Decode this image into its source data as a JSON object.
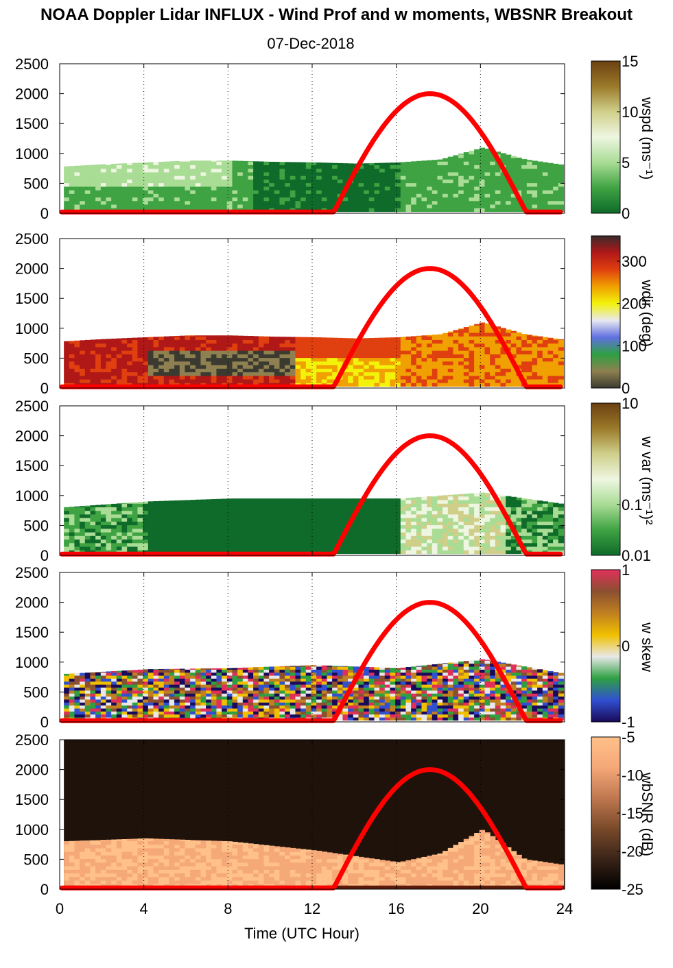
{
  "title": "NOAA Doppler Lidar INFLUX - Wind Prof and w moments, WBSNR Breakout",
  "subtitle": "07-Dec-2018",
  "chart_data": [
    {
      "type": "heatmap",
      "panel": "wspd",
      "colorbar_label": "wspd (ms⁻¹)",
      "colorbar_ticks": [
        "0",
        "5",
        "10",
        "15"
      ],
      "clim": [
        0,
        15
      ],
      "ylim": [
        0,
        2500
      ],
      "y_ticks": [
        "0",
        "500",
        "1000",
        "1500",
        "2000",
        "2500"
      ],
      "colors": [
        "#0e6b2a",
        "#3fa343",
        "#a9dc95",
        "#eef6e1",
        "#cfcf8a",
        "#9b7a2a",
        "#6b4010"
      ],
      "aerosol_top_m": [
        {
          "t": 0,
          "h": 780
        },
        {
          "t": 2,
          "h": 820
        },
        {
          "t": 4,
          "h": 850
        },
        {
          "t": 6,
          "h": 880
        },
        {
          "t": 8,
          "h": 880
        },
        {
          "t": 10,
          "h": 860
        },
        {
          "t": 12,
          "h": 850
        },
        {
          "t": 14,
          "h": 830
        },
        {
          "t": 16,
          "h": 850
        },
        {
          "t": 18,
          "h": 900
        },
        {
          "t": 20,
          "h": 1100
        },
        {
          "t": 22,
          "h": 900
        },
        {
          "t": 24,
          "h": 800
        }
      ]
    },
    {
      "type": "heatmap",
      "panel": "wdir",
      "colorbar_label": "wdir (deg)",
      "colorbar_ticks": [
        "0",
        "100",
        "200",
        "300"
      ],
      "clim": [
        0,
        360
      ],
      "ylim": [
        0,
        2500
      ],
      "y_ticks": [
        "0",
        "500",
        "1000",
        "1500",
        "2000",
        "2500"
      ],
      "colors": [
        "#3a3a30",
        "#8e8050",
        "#2ea043",
        "#6070e0",
        "#e8e8f0",
        "#f2f20a",
        "#f0a000",
        "#e04010",
        "#b01818",
        "#3a2a2a"
      ],
      "aerosol_top_m": [
        {
          "t": 0,
          "h": 780
        },
        {
          "t": 2,
          "h": 820
        },
        {
          "t": 4,
          "h": 850
        },
        {
          "t": 6,
          "h": 880
        },
        {
          "t": 8,
          "h": 880
        },
        {
          "t": 10,
          "h": 860
        },
        {
          "t": 12,
          "h": 850
        },
        {
          "t": 14,
          "h": 830
        },
        {
          "t": 16,
          "h": 850
        },
        {
          "t": 18,
          "h": 900
        },
        {
          "t": 20,
          "h": 1100
        },
        {
          "t": 22,
          "h": 900
        },
        {
          "t": 24,
          "h": 800
        }
      ]
    },
    {
      "type": "heatmap",
      "panel": "w var",
      "colorbar_label": "w var (ms⁻¹)²",
      "colorbar_ticks": [
        "0.01",
        "0.1",
        "10"
      ],
      "clim": [
        0.01,
        10
      ],
      "scale": "log",
      "ylim": [
        0,
        2500
      ],
      "y_ticks": [
        "0",
        "500",
        "1000",
        "1500",
        "2000",
        "2500"
      ],
      "colors": [
        "#0e6b2a",
        "#3fa343",
        "#a9dc95",
        "#eef6e1",
        "#cfcf8a",
        "#9b7a2a",
        "#6b4010"
      ],
      "aerosol_top_m": [
        {
          "t": 0,
          "h": 800
        },
        {
          "t": 4,
          "h": 900
        },
        {
          "t": 8,
          "h": 950
        },
        {
          "t": 12,
          "h": 950
        },
        {
          "t": 16,
          "h": 950
        },
        {
          "t": 20,
          "h": 1050
        },
        {
          "t": 24,
          "h": 850
        }
      ]
    },
    {
      "type": "heatmap",
      "panel": "w skew",
      "colorbar_label": "w skew",
      "colorbar_ticks": [
        "-1",
        "0",
        "1"
      ],
      "clim": [
        -1,
        1
      ],
      "ylim": [
        0,
        2500
      ],
      "y_ticks": [
        "0",
        "500",
        "1000",
        "1500",
        "2000",
        "2500"
      ],
      "colors": [
        "#1a0a5a",
        "#3050d0",
        "#2ea043",
        "#e8e8e8",
        "#f0c000",
        "#c08020",
        "#8a5030",
        "#e0305a"
      ],
      "aerosol_top_m": [
        {
          "t": 0,
          "h": 800
        },
        {
          "t": 4,
          "h": 880
        },
        {
          "t": 8,
          "h": 900
        },
        {
          "t": 12,
          "h": 950
        },
        {
          "t": 16,
          "h": 900
        },
        {
          "t": 20,
          "h": 1050
        },
        {
          "t": 24,
          "h": 800
        }
      ]
    },
    {
      "type": "heatmap",
      "panel": "wbSNR",
      "colorbar_label": "wbSNR (dB)",
      "colorbar_ticks": [
        "-25",
        "-20",
        "-15",
        "-10",
        "-5"
      ],
      "clim": [
        -25,
        -5
      ],
      "ylim": [
        0,
        2500
      ],
      "y_ticks": [
        "0",
        "500",
        "1000",
        "1500",
        "2000",
        "2500"
      ],
      "colors": [
        "#000000",
        "#3a2418",
        "#7a4a2a",
        "#c07850",
        "#f5a878",
        "#ffc08a"
      ],
      "aerosol_top_m": [
        {
          "t": 0,
          "h": 800
        },
        {
          "t": 4,
          "h": 850
        },
        {
          "t": 8,
          "h": 800
        },
        {
          "t": 12,
          "h": 650
        },
        {
          "t": 16,
          "h": 450
        },
        {
          "t": 18,
          "h": 600
        },
        {
          "t": 20,
          "h": 1000
        },
        {
          "t": 22,
          "h": 500
        },
        {
          "t": 24,
          "h": 400
        }
      ]
    }
  ],
  "x_axis": {
    "label": "Time (UTC Hour)",
    "ticks": [
      "0",
      "4",
      "8",
      "12",
      "16",
      "20",
      "24"
    ],
    "xlim": [
      0,
      24
    ],
    "grid": "dotted vertical lines every 4 h"
  },
  "solar_elevation_curve": {
    "color": "#ff0000",
    "sunrise_hour": 13.0,
    "sunset_hour": 22.2,
    "peak_hour": 17.6,
    "peak_value_m": 2000
  }
}
